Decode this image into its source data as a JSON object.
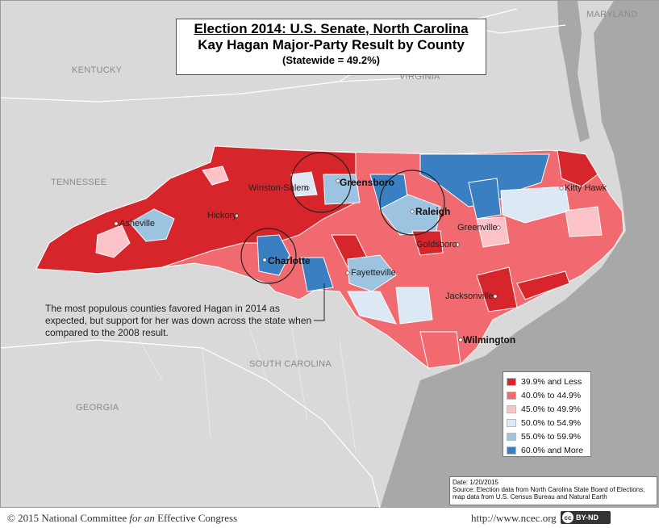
{
  "title": {
    "line1": "Election 2014: U.S. Senate, North Carolina",
    "line2": "Kay Hagan Major-Party Result by County",
    "line3": "(Statewide = 49.2%)"
  },
  "neighbor_states": {
    "kentucky": "KENTUCKY",
    "virginia": "VIRGINIA",
    "maryland": "MARYLAND",
    "tennessee": "TENNESSEE",
    "south_carolina": "SOUTH CAROLINA",
    "georgia": "GEORGIA"
  },
  "cities": {
    "winston_salem": "Winston-Salem",
    "greensboro": "Greensboro",
    "raleigh": "Raleigh",
    "kitty_hawk": "Kitty Hawk",
    "asheville": "Asheville",
    "hickory": "Hickory",
    "greenville": "Greenville",
    "goldsboro": "Goldsboro",
    "charlotte": "Charlotte",
    "fayetteville": "Fayetteville",
    "jacksonville": "Jacksonville",
    "wilmington": "Wilmington"
  },
  "annotation": "The most populous counties favored Hagan in 2014 as expected, but support for her was down across the state when compared to the 2008 result.",
  "legend": [
    {
      "label": "39.9% and Less",
      "color": "#d7262b"
    },
    {
      "label": "40.0% to 44.9%",
      "color": "#f06a6f"
    },
    {
      "label": "45.0% to 49.9%",
      "color": "#fbc3c8"
    },
    {
      "label": "50.0% to 54.9%",
      "color": "#dde8f5"
    },
    {
      "label": "55.0% to 59.9%",
      "color": "#9cc3e0"
    },
    {
      "label": "60.0% and More",
      "color": "#3a7fc1"
    }
  ],
  "source": {
    "date": "Date: 1/20/2015",
    "line1": "Source: Election data from North Carolina State Board of Elections,",
    "line2": "map data from U.S. Census Bureau and Natural Earth"
  },
  "footer": {
    "copyright_prefix": "© 2015 National Committee ",
    "copyright_italic": "for an",
    "copyright_suffix": " Effective Congress",
    "url": "http://www.ncec.org",
    "license": "BY-ND",
    "license_cc": "cc"
  }
}
